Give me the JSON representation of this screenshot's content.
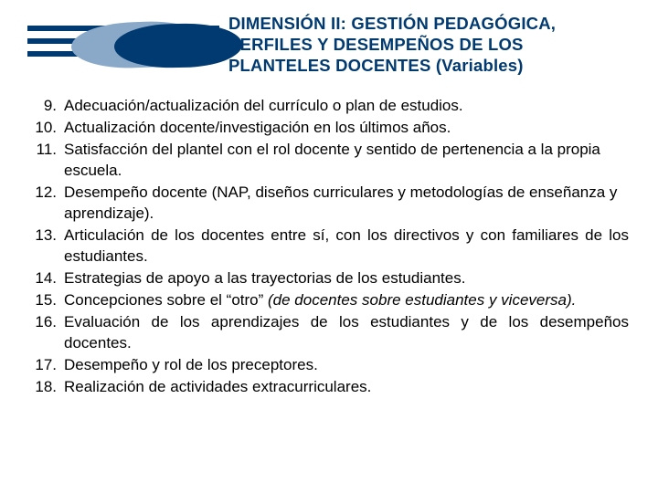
{
  "title": {
    "line1": "DIMENSIÓN II: GESTIÓN PEDAGÓGICA,",
    "line2": "PERFILES Y DESEMPEÑOS DE LOS",
    "line3": "PLANTELES DOCENTES (Variables)"
  },
  "items": [
    {
      "num": "9.",
      "text": "Adecuación/actualización del currículo o plan de estudios.",
      "justify": false
    },
    {
      "num": "10.",
      "text": "Actualización docente/investigación en los últimos años.",
      "justify": false
    },
    {
      "num": "11.",
      "text": "Satisfacción del plantel con el rol docente y sentido de pertenencia a la propia escuela.",
      "justify": false
    },
    {
      "num": "12.",
      "text": "Desempeño docente (NAP, diseños curriculares y metodologías de enseñanza y aprendizaje).",
      "justify": false
    },
    {
      "num": "13.",
      "text": "Articulación de los docentes entre sí, con los directivos y con familiares de los estudiantes.",
      "justify": true
    },
    {
      "num": "14.",
      "text": "Estrategias de apoyo a las trayectorias de los estudiantes.",
      "justify": false
    },
    {
      "num": "15.",
      "text": "Concepciones sobre el “otro” <span class=\"italic\">(de docentes sobre estudiantes y viceversa).</span>",
      "justify": true,
      "html": true
    },
    {
      "num": "16.",
      "text": "Evaluación de los aprendizajes de los estudiantes y de los desempeños docentes.",
      "justify": true
    },
    {
      "num": "17.",
      "text": "Desempeño y rol de los preceptores.",
      "justify": false
    },
    {
      "num": "18.",
      "text": "Realización de actividades extracurriculares.",
      "justify": false
    }
  ],
  "colors": {
    "brand_dark": "#003a70",
    "brand_light": "#8aa9c9",
    "text": "#000000",
    "background": "#ffffff"
  },
  "typography": {
    "title_fontsize": 18.5,
    "body_fontsize": 17,
    "line_height": 1.35,
    "font_family": "Verdana"
  }
}
